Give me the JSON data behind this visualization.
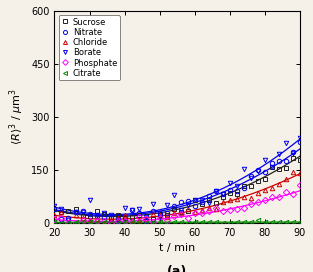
{
  "title": "",
  "xlabel": "t / min",
  "ylabel": "<R>^3 / μm^3",
  "xlim": [
    20,
    90
  ],
  "ylim": [
    0,
    600
  ],
  "xticks": [
    20,
    30,
    40,
    50,
    60,
    70,
    80,
    90
  ],
  "yticks": [
    0,
    150,
    300,
    450,
    600
  ],
  "caption": "(a)",
  "series": [
    {
      "label": "Sucrose",
      "color": "#222222",
      "marker": "s",
      "a": 0.06,
      "b": -2.0,
      "c": 35.0,
      "noise": 9
    },
    {
      "label": "Nitrate",
      "color": "#0000ee",
      "marker": "o",
      "a": 0.065,
      "b": -2.1,
      "c": 38.0,
      "noise": 12
    },
    {
      "label": "Chloride",
      "color": "#cc0000",
      "marker": "^",
      "a": 0.044,
      "b": -1.4,
      "c": 22.0,
      "noise": 8
    },
    {
      "label": "Borate",
      "color": "#0000ee",
      "marker": "v",
      "a": 0.075,
      "b": -2.5,
      "c": 45.0,
      "noise": 15
    },
    {
      "label": "Phosphate",
      "color": "#ff00ff",
      "marker": "D",
      "a": 0.028,
      "b": -0.8,
      "c": 10.0,
      "noise": 6
    },
    {
      "label": "Citrate",
      "color": "#008800",
      "marker": "<",
      "a": 0.0,
      "b": 0.01,
      "c": 2.0,
      "noise": 1.5
    }
  ],
  "figsize": [
    3.13,
    2.72
  ],
  "dpi": 100,
  "background_color": "#f5f0e8",
  "n_pts": 36
}
